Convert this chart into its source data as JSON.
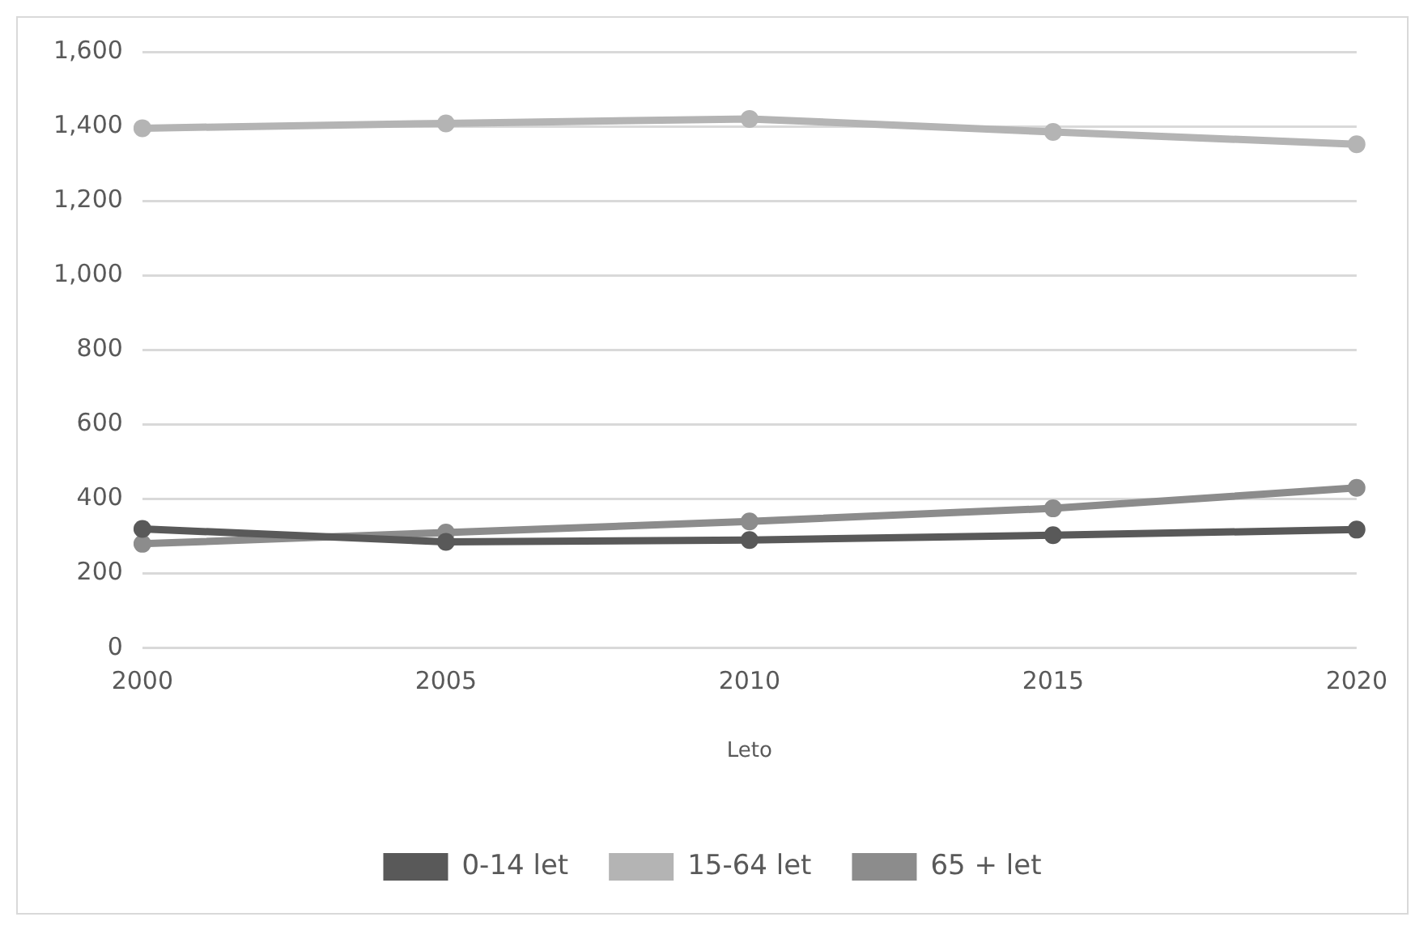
{
  "chart_data": {
    "type": "line",
    "xlabel": "Leto",
    "categories": [
      "2000",
      "2005",
      "2010",
      "2015",
      "2020"
    ],
    "series": [
      {
        "name": "0-14 let",
        "color": "#595959",
        "values": [
          320,
          285,
          290,
          303,
          318
        ]
      },
      {
        "name": "15-64 let",
        "color": "#b4b4b4",
        "values": [
          1395,
          1408,
          1420,
          1385,
          1352
        ]
      },
      {
        "name": "65 + let",
        "color": "#8c8c8c",
        "values": [
          280,
          310,
          340,
          375,
          430
        ]
      }
    ],
    "ylim": [
      0,
      1600
    ],
    "yticks": [
      {
        "value": 0,
        "label": "0"
      },
      {
        "value": 200,
        "label": "200"
      },
      {
        "value": 400,
        "label": "400"
      },
      {
        "value": 600,
        "label": "600"
      },
      {
        "value": 800,
        "label": "800"
      },
      {
        "value": 1000,
        "label": "1,000"
      },
      {
        "value": 1200,
        "label": "1,200"
      },
      {
        "value": 1400,
        "label": "1,400"
      },
      {
        "value": 1600,
        "label": "1,600"
      }
    ],
    "grid": "y",
    "legend": "bottom",
    "marker": "circle",
    "line_style": "solid"
  }
}
